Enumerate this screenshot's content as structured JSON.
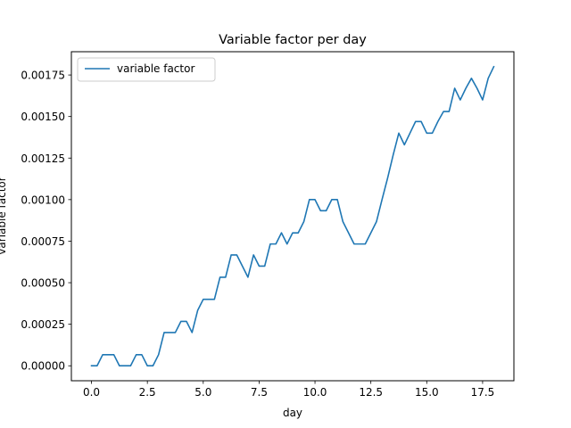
{
  "chart_data": {
    "type": "line",
    "title": "Variable factor per day",
    "xlabel": "day",
    "ylabel": "variable factor",
    "xlim": [
      -0.9,
      18.9
    ],
    "ylim": [
      -9e-05,
      0.00189
    ],
    "xticks": [
      0.0,
      2.5,
      5.0,
      7.5,
      10.0,
      12.5,
      15.0,
      17.5
    ],
    "xtick_labels": [
      "0.0",
      "2.5",
      "5.0",
      "7.5",
      "10.0",
      "12.5",
      "15.0",
      "17.5"
    ],
    "yticks": [
      0,
      0.00025,
      0.0005,
      0.00075,
      0.001,
      0.00125,
      0.0015,
      0.00175
    ],
    "ytick_labels": [
      "0.00000",
      "0.00025",
      "0.00050",
      "0.00075",
      "0.00100",
      "0.00125",
      "0.00150",
      "0.00175"
    ],
    "grid": false,
    "legend_position": "top-left",
    "series": [
      {
        "name": "variable factor",
        "color": "#1f77b4",
        "x": [
          0,
          0.25,
          0.5,
          0.75,
          1.0,
          1.25,
          1.5,
          1.75,
          2.0,
          2.25,
          2.5,
          2.75,
          3.0,
          3.25,
          3.5,
          3.75,
          4.0,
          4.25,
          4.5,
          4.75,
          5.0,
          5.25,
          5.5,
          5.75,
          6.0,
          6.25,
          6.5,
          6.75,
          7.0,
          7.25,
          7.5,
          7.75,
          8.0,
          8.25,
          8.5,
          8.75,
          9.0,
          9.25,
          9.5,
          9.75,
          10.0,
          10.25,
          10.5,
          10.75,
          11.0,
          11.25,
          11.5,
          11.75,
          12.0,
          12.25,
          12.5,
          12.75,
          13.0,
          13.25,
          13.5,
          13.75,
          14.0,
          14.25,
          14.5,
          14.75,
          15.0,
          15.25,
          15.5,
          15.75,
          16.0,
          16.25,
          16.5,
          16.75,
          17.0,
          17.25,
          17.5,
          17.75,
          18.0
        ],
        "y": [
          0,
          0,
          6.67e-05,
          6.67e-05,
          6.67e-05,
          0,
          0,
          0,
          6.67e-05,
          6.67e-05,
          0,
          0,
          6.67e-05,
          0.0002,
          0.0002,
          0.0002,
          0.000267,
          0.000267,
          0.0002,
          0.000333,
          0.0004,
          0.0004,
          0.0004,
          0.000533,
          0.000533,
          0.000667,
          0.000667,
          0.0006,
          0.000533,
          0.000667,
          0.0006,
          0.0006,
          0.000733,
          0.000733,
          0.0008,
          0.000733,
          0.0008,
          0.0008,
          0.000867,
          0.001,
          0.001,
          0.000933,
          0.000933,
          0.001,
          0.001,
          0.000867,
          0.0008,
          0.000733,
          0.000733,
          0.000733,
          0.0008,
          0.000867,
          0.001,
          0.00113,
          0.00127,
          0.0014,
          0.00133,
          0.0014,
          0.00147,
          0.00147,
          0.0014,
          0.0014,
          0.00147,
          0.00153,
          0.00153,
          0.00167,
          0.0016,
          0.00167,
          0.00173,
          0.00167,
          0.0016,
          0.00173,
          0.0018
        ]
      }
    ]
  }
}
